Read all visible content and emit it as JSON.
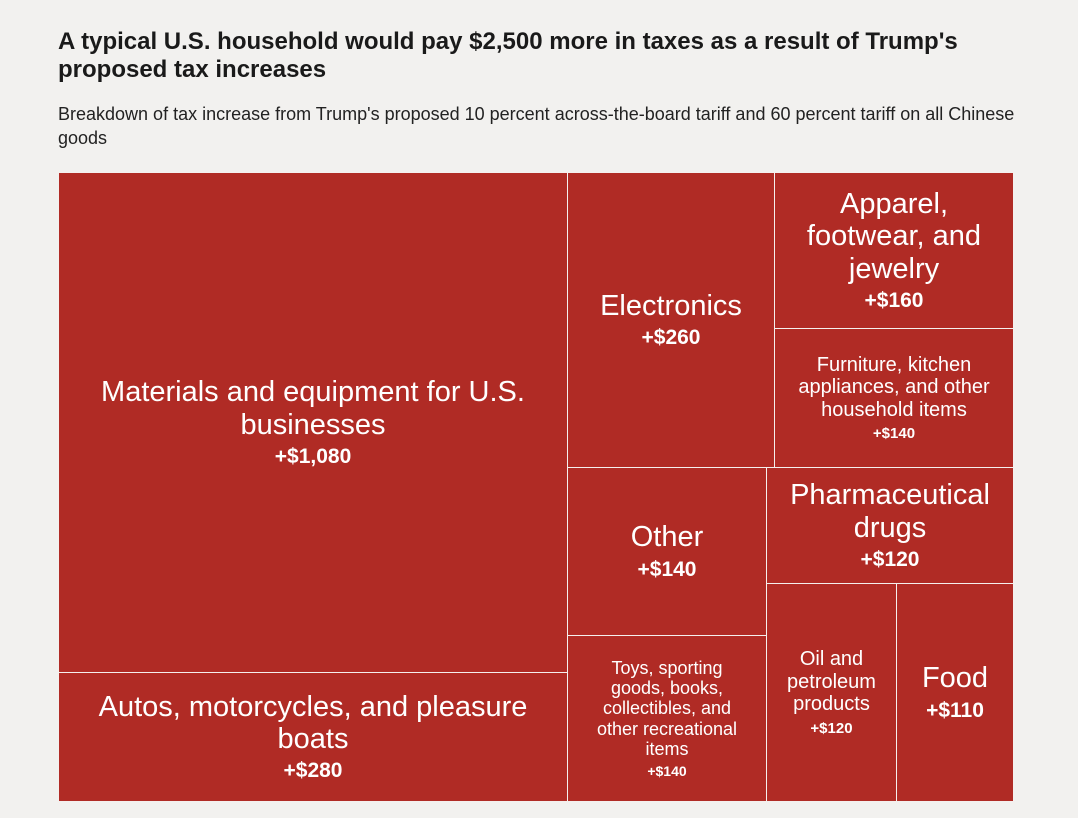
{
  "chart_data": {
    "type": "treemap",
    "title": "A typical U.S. household would pay $2,500 more in taxes as a result of Trump's proposed tax increases",
    "subtitle": "Breakdown of tax increase from Trump's proposed 10 percent across-the-board tariff and 60 percent tariff on all Chinese goods",
    "color": "#b02b25",
    "items": [
      {
        "label": "Materials and equipment for U.S. businesses",
        "value": 1080,
        "value_label": "+$1,080"
      },
      {
        "label": "Autos, motorcycles, and pleasure boats",
        "value": 280,
        "value_label": "+$280"
      },
      {
        "label": "Electronics",
        "value": 260,
        "value_label": "+$260"
      },
      {
        "label": "Apparel, footwear, and jewelry",
        "value": 160,
        "value_label": "+$160"
      },
      {
        "label": "Furniture, kitchen appliances, and other household items",
        "value": 140,
        "value_label": "+$140"
      },
      {
        "label": "Other",
        "value": 140,
        "value_label": "+$140"
      },
      {
        "label": "Toys, sporting goods, books, collectibles, and other recreational items",
        "value": 140,
        "value_label": "+$140"
      },
      {
        "label": "Pharmaceutical drugs",
        "value": 120,
        "value_label": "+$120"
      },
      {
        "label": "Oil and petroleum products",
        "value": 120,
        "value_label": "+$120"
      },
      {
        "label": "Food",
        "value": 110,
        "value_label": "+$110"
      }
    ]
  }
}
